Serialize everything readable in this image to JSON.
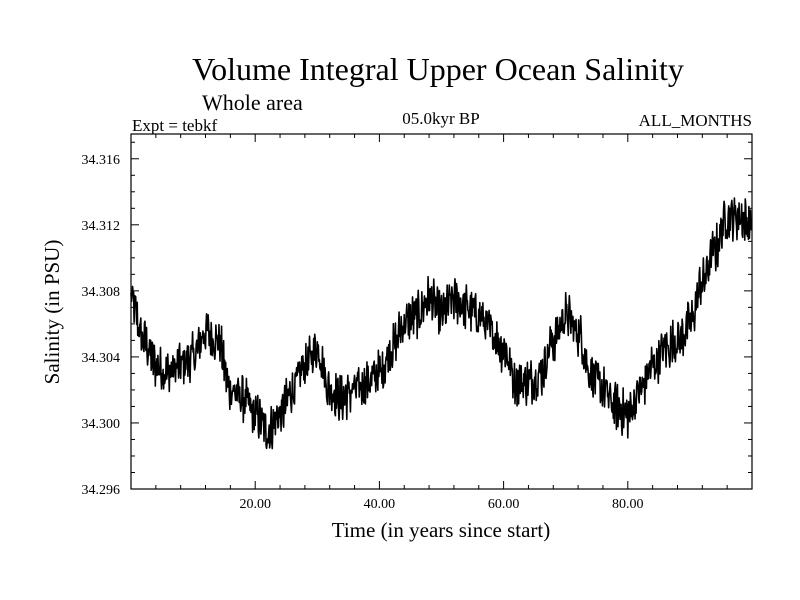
{
  "chart_data": {
    "type": "line",
    "title": "Volume Integral Upper Ocean Salinity",
    "subtitle": "Whole area",
    "left_label": "Expt = tebkf",
    "center_label": "05.0kyr BP",
    "right_label": "ALL_MONTHS",
    "xlabel": "Time (in years since start)",
    "ylabel": "Salinity (in PSU)",
    "xlim": [
      0.0,
      100.0
    ],
    "ylim": [
      34.296,
      34.3175
    ],
    "x_ticks": [
      20,
      40,
      60,
      80
    ],
    "x_tick_labels": [
      "20.00",
      "40.00",
      "60.00",
      "80.00"
    ],
    "y_ticks": [
      34.296,
      34.3,
      34.304,
      34.308,
      34.312,
      34.316
    ],
    "y_tick_labels": [
      "34.296",
      "34.300",
      "34.304",
      "34.308",
      "34.312",
      "34.316"
    ],
    "grid": false,
    "line_color": "#000000",
    "series": [
      {
        "name": "Salinity",
        "x": [
          0,
          2,
          4,
          6,
          8,
          10,
          12,
          14,
          16,
          18,
          20,
          22,
          24,
          26,
          28,
          30,
          32,
          34,
          36,
          38,
          40,
          42,
          44,
          46,
          48,
          50,
          52,
          54,
          56,
          58,
          60,
          62,
          64,
          66,
          68,
          70,
          72,
          74,
          76,
          78,
          80,
          82,
          84,
          86,
          88,
          90,
          92,
          94,
          96,
          98,
          100
        ],
        "values": [
          34.3075,
          34.305,
          34.3035,
          34.303,
          34.3035,
          34.304,
          34.3055,
          34.305,
          34.302,
          34.3015,
          34.3005,
          34.2995,
          34.3005,
          34.302,
          34.3035,
          34.3045,
          34.302,
          34.3015,
          34.302,
          34.3025,
          34.303,
          34.3045,
          34.306,
          34.3065,
          34.3075,
          34.3065,
          34.3075,
          34.307,
          34.3065,
          34.3055,
          34.3045,
          34.3025,
          34.3025,
          34.303,
          34.305,
          34.3065,
          34.3055,
          34.303,
          34.302,
          34.301,
          34.3005,
          34.302,
          34.3035,
          34.3045,
          34.305,
          34.306,
          34.3085,
          34.3105,
          34.3125,
          34.3125,
          34.312
        ]
      }
    ]
  }
}
